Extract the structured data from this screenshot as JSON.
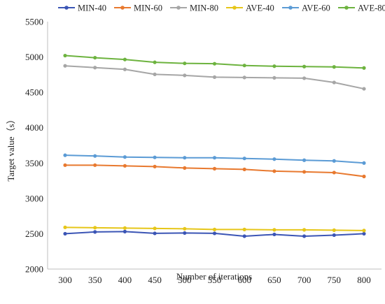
{
  "chart_data": {
    "type": "line",
    "title": "",
    "xlabel": "Number of iterations",
    "ylabel": "Target value（s）",
    "x": [
      300,
      350,
      400,
      450,
      500,
      550,
      600,
      650,
      700,
      750,
      800
    ],
    "ylim": [
      2000,
      5500
    ],
    "yticks": [
      2000,
      2500,
      3000,
      3500,
      4000,
      4500,
      5000,
      5500
    ],
    "grid": false,
    "legend_position": "top",
    "series": [
      {
        "name": "MIN-40",
        "color": "#3b55b5",
        "values": [
          2500,
          2525,
          2530,
          2505,
          2510,
          2505,
          2465,
          2490,
          2465,
          2480,
          2500
        ]
      },
      {
        "name": "MIN-60",
        "color": "#e8792f",
        "values": [
          3470,
          3470,
          3460,
          3450,
          3430,
          3420,
          3410,
          3385,
          3375,
          3365,
          3310
        ]
      },
      {
        "name": "MIN-80",
        "color": "#a6a6a6",
        "values": [
          4875,
          4850,
          4825,
          4755,
          4740,
          4715,
          4710,
          4705,
          4700,
          4640,
          4550
        ]
      },
      {
        "name": "AVE-40",
        "color": "#e6c619",
        "values": [
          2590,
          2585,
          2580,
          2575,
          2570,
          2560,
          2560,
          2555,
          2555,
          2550,
          2545
        ]
      },
      {
        "name": "AVE-60",
        "color": "#5b9bd5",
        "values": [
          3610,
          3600,
          3585,
          3580,
          3575,
          3575,
          3565,
          3555,
          3540,
          3530,
          3500
        ]
      },
      {
        "name": "AVE-80",
        "color": "#6db33f",
        "values": [
          5020,
          4990,
          4965,
          4925,
          4910,
          4905,
          4880,
          4870,
          4865,
          4860,
          4845
        ]
      }
    ]
  }
}
